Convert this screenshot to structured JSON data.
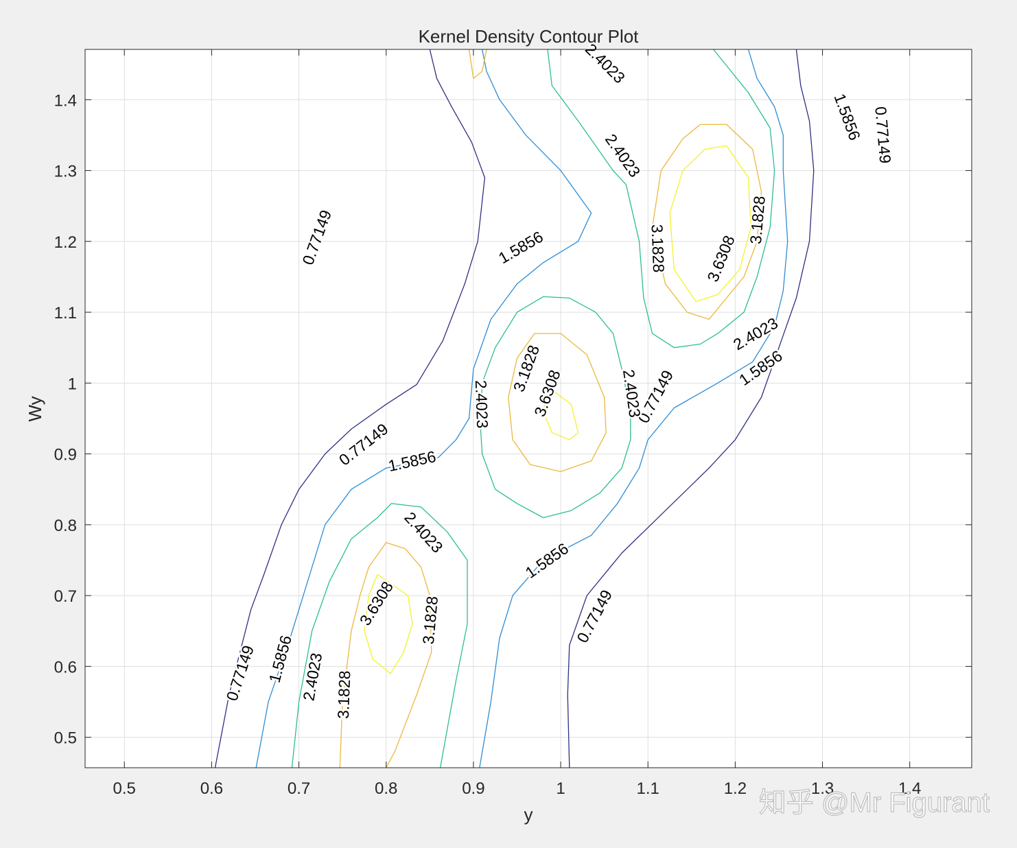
{
  "chart_data": {
    "type": "contour",
    "title": "Kernel Density Contour Plot",
    "xlabel": "y",
    "ylabel": "Wy",
    "xlim": [
      0.455,
      1.471
    ],
    "ylim": [
      0.457,
      1.471
    ],
    "xticks": [
      0.5,
      0.6,
      0.7,
      0.8,
      0.9,
      1,
      1.1,
      1.2,
      1.3,
      1.4
    ],
    "yticks": [
      0.5,
      0.6,
      0.7,
      0.8,
      0.9,
      1,
      1.1,
      1.2,
      1.3,
      1.4
    ],
    "grid": true,
    "colormap": "parula",
    "levels": [
      {
        "value": 0.77149,
        "label": "0.77149",
        "color": "#2e2f80"
      },
      {
        "value": 1.5856,
        "label": "1.5856",
        "color": "#2d8cd4"
      },
      {
        "value": 2.4023,
        "label": "2.4023",
        "color": "#2bbd96"
      },
      {
        "value": 3.1828,
        "label": "3.1828",
        "color": "#ebb83c"
      },
      {
        "value": 3.6308,
        "label": "3.6308",
        "color": "#f4f22a"
      }
    ],
    "contours": [
      {
        "level": 0,
        "points": [
          [
            0.604,
            0.457
          ],
          [
            0.62,
            0.56
          ],
          [
            0.645,
            0.68
          ],
          [
            0.66,
            0.73
          ],
          [
            0.68,
            0.8
          ],
          [
            0.7,
            0.85
          ],
          [
            0.73,
            0.9
          ],
          [
            0.76,
            0.935
          ],
          [
            0.8,
            0.97
          ],
          [
            0.835,
            0.998
          ],
          [
            0.865,
            1.06
          ],
          [
            0.89,
            1.14
          ],
          [
            0.905,
            1.2
          ],
          [
            0.913,
            1.29
          ],
          [
            0.898,
            1.34
          ],
          [
            0.875,
            1.39
          ],
          [
            0.858,
            1.43
          ],
          [
            0.85,
            1.471
          ]
        ]
      },
      {
        "level": 0,
        "points": [
          [
            1.01,
            0.457
          ],
          [
            1.008,
            0.56
          ],
          [
            1.01,
            0.63
          ],
          [
            1.03,
            0.7
          ],
          [
            1.07,
            0.76
          ],
          [
            1.12,
            0.82
          ],
          [
            1.17,
            0.88
          ],
          [
            1.2,
            0.92
          ],
          [
            1.23,
            0.98
          ],
          [
            1.25,
            1.05
          ],
          [
            1.27,
            1.12
          ],
          [
            1.285,
            1.2
          ],
          [
            1.29,
            1.3
          ],
          [
            1.285,
            1.37
          ],
          [
            1.275,
            1.42
          ],
          [
            1.27,
            1.471
          ]
        ]
      },
      {
        "level": 1,
        "points": [
          [
            0.651,
            0.457
          ],
          [
            0.665,
            0.55
          ],
          [
            0.69,
            0.64
          ],
          [
            0.71,
            0.72
          ],
          [
            0.73,
            0.8
          ],
          [
            0.76,
            0.85
          ],
          [
            0.8,
            0.88
          ],
          [
            0.86,
            0.895
          ],
          [
            0.88,
            0.92
          ],
          [
            0.895,
            0.95
          ],
          [
            0.9,
            1.02
          ],
          [
            0.92,
            1.09
          ],
          [
            0.95,
            1.14
          ],
          [
            0.98,
            1.17
          ],
          [
            1.02,
            1.2
          ],
          [
            1.035,
            1.24
          ],
          [
            1.0,
            1.3
          ],
          [
            0.96,
            1.35
          ],
          [
            0.93,
            1.4
          ],
          [
            0.915,
            1.44
          ],
          [
            0.91,
            1.471
          ]
        ]
      },
      {
        "level": 1,
        "points": [
          [
            0.907,
            0.457
          ],
          [
            0.92,
            0.55
          ],
          [
            0.93,
            0.64
          ],
          [
            0.945,
            0.7
          ],
          [
            0.98,
            0.75
          ],
          [
            1.035,
            0.785
          ],
          [
            1.065,
            0.83
          ],
          [
            1.09,
            0.88
          ],
          [
            1.1,
            0.92
          ],
          [
            1.13,
            0.965
          ],
          [
            1.18,
            1.0
          ],
          [
            1.22,
            1.03
          ],
          [
            1.245,
            1.08
          ],
          [
            1.255,
            1.13
          ],
          [
            1.26,
            1.2
          ],
          [
            1.255,
            1.3
          ],
          [
            1.255,
            1.35
          ],
          [
            1.245,
            1.39
          ],
          [
            1.225,
            1.43
          ],
          [
            1.215,
            1.471
          ]
        ]
      },
      {
        "level": 2,
        "points": [
          [
            0.692,
            0.457
          ],
          [
            0.7,
            0.55
          ],
          [
            0.715,
            0.65
          ],
          [
            0.735,
            0.72
          ],
          [
            0.76,
            0.78
          ],
          [
            0.79,
            0.81
          ],
          [
            0.806,
            0.83
          ],
          [
            0.84,
            0.825
          ],
          [
            0.87,
            0.79
          ],
          [
            0.893,
            0.75
          ],
          [
            0.893,
            0.66
          ],
          [
            0.88,
            0.58
          ],
          [
            0.862,
            0.457
          ]
        ]
      },
      {
        "level": 2,
        "points": [
          [
            0.98,
            0.81
          ],
          [
            1.012,
            0.82
          ],
          [
            1.045,
            0.845
          ],
          [
            1.07,
            0.88
          ],
          [
            1.08,
            0.92
          ],
          [
            1.08,
            0.96
          ],
          [
            1.07,
            1.02
          ],
          [
            1.06,
            1.07
          ],
          [
            1.04,
            1.1
          ],
          [
            1.01,
            1.12
          ],
          [
            0.98,
            1.122
          ],
          [
            0.95,
            1.1
          ],
          [
            0.925,
            1.05
          ],
          [
            0.91,
            1.0
          ],
          [
            0.908,
            0.94
          ],
          [
            0.91,
            0.9
          ],
          [
            0.925,
            0.85
          ],
          [
            0.95,
            0.83
          ],
          [
            0.98,
            0.81
          ]
        ]
      },
      {
        "level": 2,
        "points": [
          [
            1.175,
            1.471
          ],
          [
            1.215,
            1.41
          ],
          [
            1.24,
            1.36
          ],
          [
            1.245,
            1.3
          ],
          [
            1.24,
            1.22
          ],
          [
            1.225,
            1.15
          ],
          [
            1.21,
            1.1
          ],
          [
            1.18,
            1.07
          ],
          [
            1.16,
            1.055
          ],
          [
            1.13,
            1.05
          ],
          [
            1.105,
            1.07
          ],
          [
            1.095,
            1.12
          ],
          [
            1.09,
            1.2
          ],
          [
            1.075,
            1.28
          ],
          [
            1.06,
            1.3
          ],
          [
            1.02,
            1.37
          ],
          [
            0.99,
            1.42
          ],
          [
            0.985,
            1.471
          ]
        ]
      },
      {
        "level": 3,
        "points": [
          [
            0.747,
            0.457
          ],
          [
            0.75,
            0.55
          ],
          [
            0.76,
            0.65
          ],
          [
            0.77,
            0.7
          ],
          [
            0.78,
            0.74
          ],
          [
            0.8,
            0.775
          ],
          [
            0.822,
            0.766
          ],
          [
            0.84,
            0.74
          ],
          [
            0.85,
            0.7
          ],
          [
            0.852,
            0.62
          ],
          [
            0.835,
            0.56
          ],
          [
            0.81,
            0.48
          ],
          [
            0.8,
            0.457
          ]
        ]
      },
      {
        "level": 3,
        "points": [
          [
            1.0,
            0.875
          ],
          [
            1.035,
            0.89
          ],
          [
            1.052,
            0.93
          ],
          [
            1.05,
            0.98
          ],
          [
            1.03,
            1.04
          ],
          [
            1.0,
            1.07
          ],
          [
            0.97,
            1.07
          ],
          [
            0.95,
            1.035
          ],
          [
            0.94,
            0.98
          ],
          [
            0.945,
            0.92
          ],
          [
            0.965,
            0.885
          ],
          [
            1.0,
            0.875
          ]
        ]
      },
      {
        "level": 3,
        "points": [
          [
            1.16,
            1.365
          ],
          [
            1.19,
            1.365
          ],
          [
            1.22,
            1.33
          ],
          [
            1.23,
            1.27
          ],
          [
            1.225,
            1.2
          ],
          [
            1.21,
            1.15
          ],
          [
            1.19,
            1.12
          ],
          [
            1.17,
            1.09
          ],
          [
            1.145,
            1.1
          ],
          [
            1.12,
            1.14
          ],
          [
            1.105,
            1.22
          ],
          [
            1.115,
            1.3
          ],
          [
            1.14,
            1.345
          ],
          [
            1.16,
            1.365
          ]
        ]
      },
      {
        "level": 3,
        "points": [
          [
            0.895,
            1.471
          ],
          [
            0.9,
            1.43
          ],
          [
            0.91,
            1.44
          ],
          [
            0.915,
            1.471
          ]
        ]
      },
      {
        "level": 4,
        "points": [
          [
            0.79,
            0.73
          ],
          [
            0.825,
            0.7
          ],
          [
            0.83,
            0.66
          ],
          [
            0.82,
            0.62
          ],
          [
            0.805,
            0.59
          ],
          [
            0.785,
            0.61
          ],
          [
            0.775,
            0.65
          ],
          [
            0.78,
            0.7
          ],
          [
            0.79,
            0.73
          ]
        ]
      },
      {
        "level": 4,
        "points": [
          [
            0.985,
            0.995
          ],
          [
            1.012,
            0.97
          ],
          [
            1.02,
            0.93
          ],
          [
            1.01,
            0.92
          ],
          [
            0.99,
            0.93
          ],
          [
            0.98,
            0.96
          ],
          [
            0.985,
            0.995
          ]
        ]
      },
      {
        "level": 4,
        "points": [
          [
            1.165,
            1.33
          ],
          [
            1.19,
            1.335
          ],
          [
            1.215,
            1.29
          ],
          [
            1.218,
            1.22
          ],
          [
            1.205,
            1.16
          ],
          [
            1.18,
            1.125
          ],
          [
            1.155,
            1.115
          ],
          [
            1.13,
            1.16
          ],
          [
            1.125,
            1.24
          ],
          [
            1.14,
            1.3
          ],
          [
            1.165,
            1.33
          ]
        ]
      }
    ],
    "contour_labels": [
      {
        "text": "0.77149",
        "x": 0.722,
        "y": 1.205,
        "rotation": -70
      },
      {
        "text": "0.77149",
        "x": 0.775,
        "y": 0.912,
        "rotation": -38
      },
      {
        "text": "0.77149",
        "x": 0.634,
        "y": 0.59,
        "rotation": -72
      },
      {
        "text": "0.77149",
        "x": 1.04,
        "y": 0.67,
        "rotation": -62
      },
      {
        "text": "0.77149",
        "x": 1.11,
        "y": 0.98,
        "rotation": -62
      },
      {
        "text": "0.77149",
        "x": 1.368,
        "y": 1.35,
        "rotation": 85
      },
      {
        "text": "1.5856",
        "x": 0.955,
        "y": 1.19,
        "rotation": -30
      },
      {
        "text": "1.5856",
        "x": 0.83,
        "y": 0.888,
        "rotation": -12
      },
      {
        "text": "1.5856",
        "x": 0.68,
        "y": 0.61,
        "rotation": -75
      },
      {
        "text": "1.5856",
        "x": 0.985,
        "y": 0.748,
        "rotation": -35
      },
      {
        "text": "1.5856",
        "x": 1.23,
        "y": 1.02,
        "rotation": -35
      },
      {
        "text": "1.5856",
        "x": 1.327,
        "y": 1.375,
        "rotation": 70
      },
      {
        "text": "2.4023",
        "x": 1.07,
        "y": 1.32,
        "rotation": 55
      },
      {
        "text": "2.4023",
        "x": 1.05,
        "y": 1.45,
        "rotation": 45
      },
      {
        "text": "2.4023",
        "x": 1.224,
        "y": 1.068,
        "rotation": -30
      },
      {
        "text": "2.4023",
        "x": 0.908,
        "y": 0.97,
        "rotation": 88
      },
      {
        "text": "2.4023",
        "x": 1.08,
        "y": 0.985,
        "rotation": 82
      },
      {
        "text": "2.4023",
        "x": 0.842,
        "y": 0.788,
        "rotation": 48
      },
      {
        "text": "2.4023",
        "x": 0.717,
        "y": 0.585,
        "rotation": -80
      },
      {
        "text": "3.1828",
        "x": 1.11,
        "y": 1.19,
        "rotation": 88
      },
      {
        "text": "3.1828",
        "x": 1.227,
        "y": 1.23,
        "rotation": -85
      },
      {
        "text": "3.1828",
        "x": 0.962,
        "y": 1.02,
        "rotation": -70
      },
      {
        "text": "3.1828",
        "x": 0.852,
        "y": 0.665,
        "rotation": -85
      },
      {
        "text": "3.1828",
        "x": 0.753,
        "y": 0.56,
        "rotation": -88
      },
      {
        "text": "3.6308",
        "x": 1.185,
        "y": 1.175,
        "rotation": -68
      },
      {
        "text": "3.6308",
        "x": 0.986,
        "y": 0.985,
        "rotation": -70
      },
      {
        "text": "3.6308",
        "x": 0.79,
        "y": 0.688,
        "rotation": -58
      }
    ]
  },
  "watermark": "知乎 @Mr Figurant"
}
